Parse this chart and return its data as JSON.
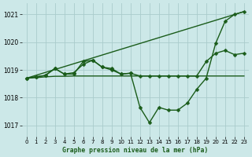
{
  "title": "Graphe pression niveau de la mer (hPa)",
  "bg_color": "#cce8e8",
  "grid_color": "#aacccc",
  "line_color": "#1a5c1a",
  "xlim": [
    -0.5,
    23.5
  ],
  "ylim": [
    1016.6,
    1021.4
  ],
  "yticks": [
    1017,
    1018,
    1019,
    1020,
    1021
  ],
  "xticks": [
    0,
    1,
    2,
    3,
    4,
    5,
    6,
    7,
    8,
    9,
    10,
    11,
    12,
    13,
    14,
    15,
    16,
    17,
    18,
    19,
    20,
    21,
    22,
    23
  ],
  "series": [
    {
      "x": [
        0,
        1,
        2,
        3,
        4,
        5,
        6,
        7,
        8,
        9,
        10,
        11,
        12,
        13,
        14,
        15,
        16,
        17,
        18,
        19,
        20,
        21,
        22,
        23
      ],
      "y": [
        1018.7,
        1018.72,
        1018.75,
        1018.77,
        1018.77,
        1018.78,
        1018.78,
        1018.78,
        1018.78,
        1018.78,
        1018.78,
        1018.78,
        1018.78,
        1018.78,
        1018.78,
        1018.78,
        1018.78,
        1018.78,
        1018.78,
        1018.78,
        1018.78,
        1018.78,
        1018.78,
        1018.78
      ],
      "marker": "D",
      "markersize": 2.0,
      "linewidth": 1.0,
      "has_markers": false
    },
    {
      "x": [
        0,
        1,
        2,
        3,
        4,
        5,
        6,
        7,
        8,
        9,
        10,
        11,
        12,
        13,
        14,
        15,
        16,
        17,
        18,
        19,
        20,
        21,
        22,
        23
      ],
      "y": [
        1018.7,
        1018.75,
        1018.8,
        1019.05,
        1018.85,
        1018.85,
        1019.3,
        1019.35,
        1019.1,
        1019.0,
        1018.85,
        1018.88,
        1017.65,
        1017.1,
        1017.65,
        1017.55,
        1017.55,
        1017.8,
        1018.3,
        1018.7,
        1019.95,
        1020.75,
        1021.0,
        1021.1
      ],
      "marker": "D",
      "markersize": 2.5,
      "linewidth": 1.0,
      "has_markers": true
    },
    {
      "x": [
        0,
        1,
        2,
        3,
        4,
        5,
        6,
        7,
        8,
        9,
        10,
        11,
        12,
        13,
        14,
        15,
        16,
        17,
        18,
        19,
        20,
        21,
        22,
        23
      ],
      "y": [
        1018.7,
        1018.75,
        1018.8,
        1019.05,
        1018.85,
        1018.9,
        1019.2,
        1019.35,
        1019.1,
        1019.05,
        1018.85,
        1018.88,
        1018.78,
        1018.78,
        1018.78,
        1018.78,
        1018.78,
        1018.78,
        1018.78,
        1019.3,
        1019.6,
        1019.7,
        1019.55,
        1019.6
      ],
      "marker": "D",
      "markersize": 2.5,
      "linewidth": 1.0,
      "has_markers": true
    },
    {
      "x": [
        0,
        23
      ],
      "y": [
        1018.7,
        1021.1
      ],
      "marker": null,
      "markersize": 0,
      "linewidth": 1.0,
      "has_markers": false
    }
  ]
}
